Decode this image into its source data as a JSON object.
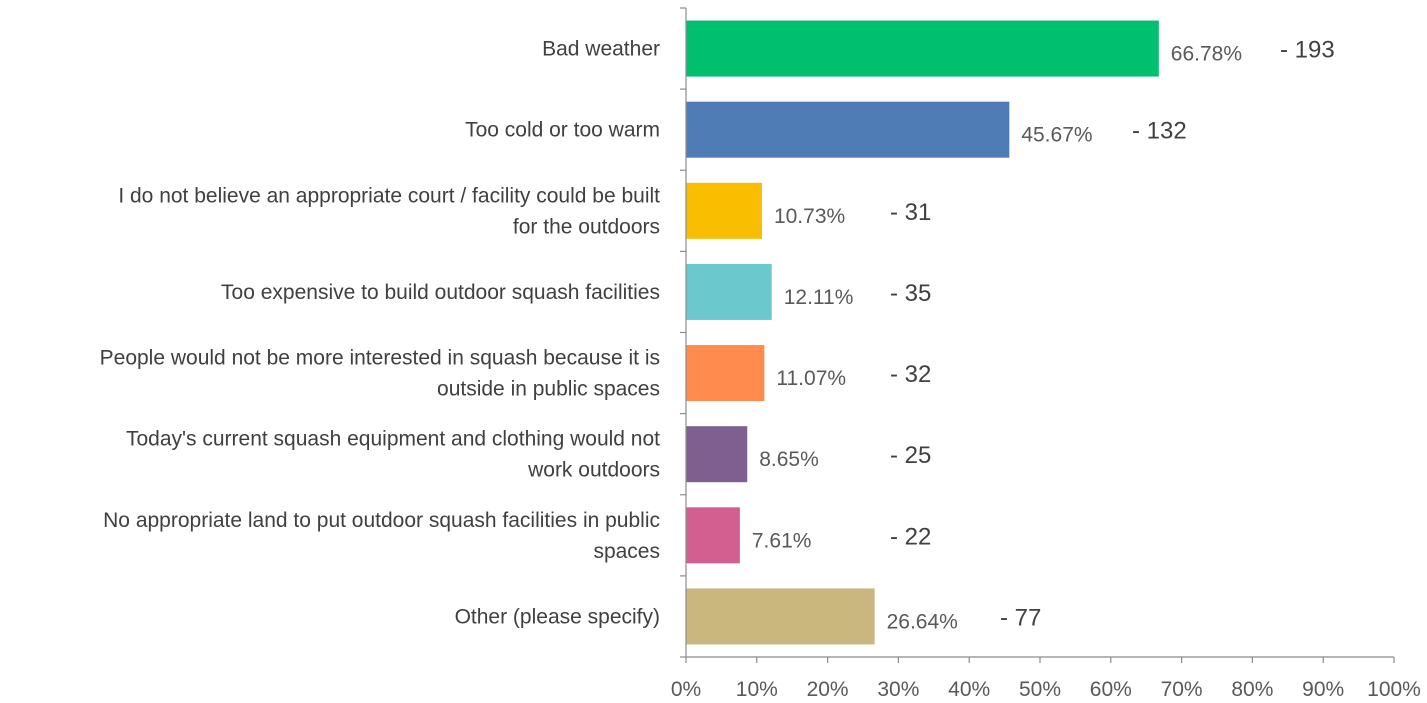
{
  "chart_data": {
    "type": "bar",
    "orientation": "horizontal",
    "title": "",
    "xlabel": "",
    "ylabel": "",
    "xlim": [
      0,
      100
    ],
    "x_ticks": [
      "0%",
      "10%",
      "20%",
      "30%",
      "40%",
      "50%",
      "60%",
      "70%",
      "80%",
      "90%",
      "100%"
    ],
    "grid": false,
    "legend": "none",
    "categories": [
      [
        "Bad weather"
      ],
      [
        "Too cold or too warm"
      ],
      [
        "I do not believe an appropriate court / facility could be built",
        "for the outdoors"
      ],
      [
        "Too expensive to build outdoor squash facilities"
      ],
      [
        "People would not be more interested in squash because it is",
        "outside in public spaces"
      ],
      [
        "Today's current squash equipment and clothing would not",
        "work outdoors"
      ],
      [
        "No appropriate land to put outdoor squash facilities in public",
        "spaces"
      ],
      [
        "Other (please specify)"
      ]
    ],
    "values": [
      66.78,
      45.67,
      10.73,
      12.11,
      11.07,
      8.65,
      7.61,
      26.64
    ],
    "value_labels": [
      "66.78%",
      "45.67%",
      "10.73%",
      "12.11%",
      "11.07%",
      "8.65%",
      "7.61%",
      "26.64%"
    ],
    "counts": [
      "- 193",
      "- 132",
      "- 31",
      "- 35",
      "- 32",
      "- 25",
      "- 22",
      "- 77"
    ],
    "colors": [
      "#00bf6f",
      "#507cb6",
      "#f9be00",
      "#6bc8cd",
      "#ff8b4f",
      "#7f5f90",
      "#d25f90",
      "#c9b77d"
    ]
  }
}
